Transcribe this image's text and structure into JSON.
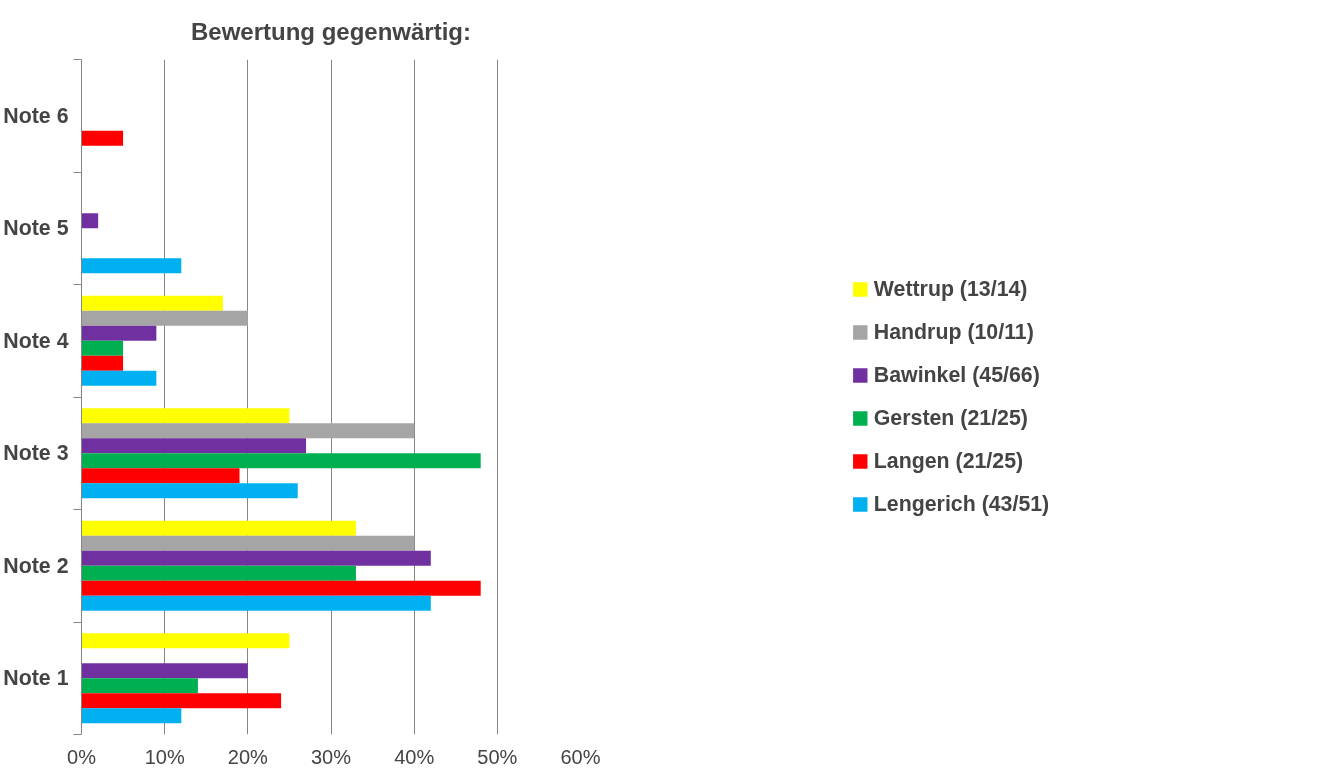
{
  "chart_data": {
    "type": "bar",
    "orientation": "horizontal",
    "title": "Bewertung gegenwärtig:",
    "categories": [
      "Note 6",
      "Note 5",
      "Note 4",
      "Note 3",
      "Note 2",
      "Note 1"
    ],
    "series": [
      {
        "name": "Wettrup (13/14)",
        "color": "#ffff00",
        "values": [
          0,
          0,
          17,
          25,
          33,
          25
        ]
      },
      {
        "name": "Handrup (10/11)",
        "color": "#a5a5a5",
        "values": [
          0,
          0,
          20,
          40,
          40,
          0
        ]
      },
      {
        "name": "Bawinkel (45/66)",
        "color": "#7030a0",
        "values": [
          0,
          2,
          9,
          27,
          42,
          20
        ]
      },
      {
        "name": "Gersten (21/25)",
        "color": "#00b050",
        "values": [
          0,
          0,
          5,
          48,
          33,
          14
        ]
      },
      {
        "name": "Langen (21/25)",
        "color": "#ff0000",
        "values": [
          5,
          0,
          5,
          19,
          48,
          24
        ]
      },
      {
        "name": "Lengerich (43/51)",
        "color": "#00b0f0",
        "values": [
          0,
          12,
          9,
          26,
          42,
          12
        ]
      }
    ],
    "xlim": [
      0,
      60
    ],
    "xticks": [
      {
        "value": 0,
        "label": "0%"
      },
      {
        "value": 10,
        "label": "10%"
      },
      {
        "value": 20,
        "label": "20%"
      },
      {
        "value": 30,
        "label": "30%"
      },
      {
        "value": 40,
        "label": "40%"
      },
      {
        "value": 50,
        "label": "50%"
      },
      {
        "value": 60,
        "label": "60%"
      }
    ],
    "grid": "x",
    "legend": "right"
  }
}
